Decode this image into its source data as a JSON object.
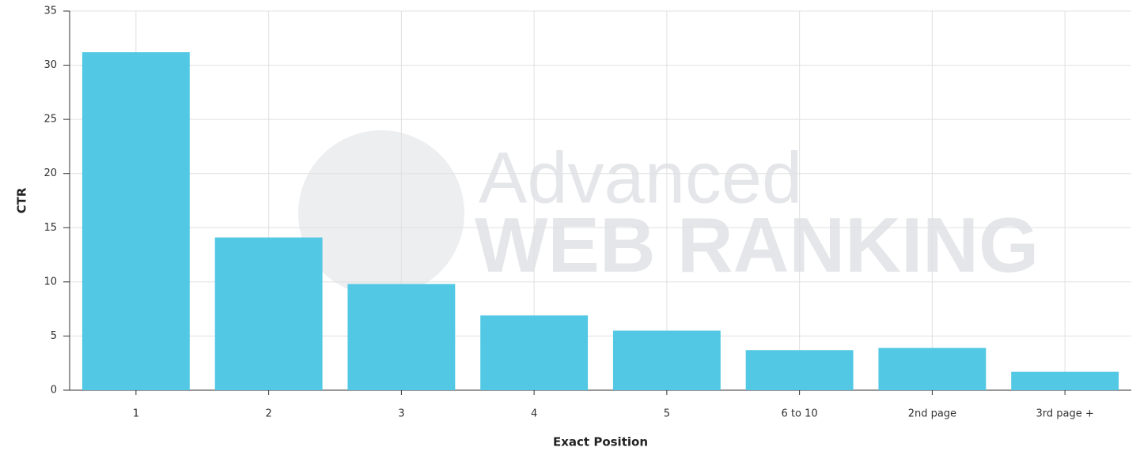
{
  "chart_data": {
    "type": "bar",
    "x_label": "Exact Position",
    "y_label": "CTR",
    "watermark": [
      "Advanced",
      "WEB RANKING"
    ],
    "categories": [
      "1",
      "2",
      "3",
      "4",
      "5",
      "6 to 10",
      "2nd page",
      "3rd page +"
    ],
    "values": [
      31.2,
      14.1,
      9.8,
      6.9,
      5.5,
      3.7,
      3.9,
      1.7
    ],
    "color": "#52c8e4",
    "ylim": [
      0,
      35
    ],
    "yticks": [
      0,
      5,
      10,
      15,
      20,
      25,
      30,
      35
    ],
    "grid": true
  }
}
